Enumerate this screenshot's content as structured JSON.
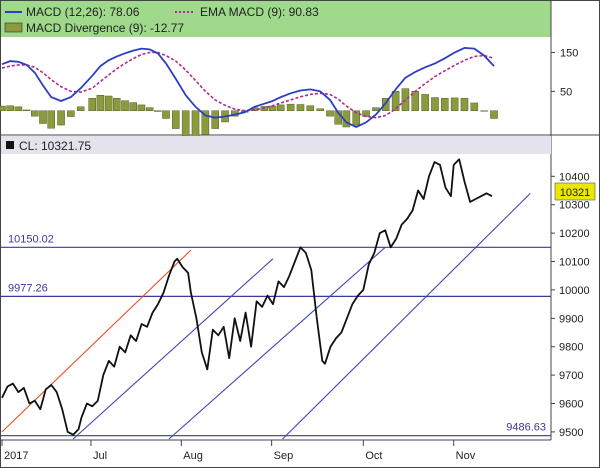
{
  "chart_data": [
    {
      "type": "line",
      "panel": "indicator",
      "legend": {
        "macd_label": "MACD (12,26): 78.06",
        "ema_label": "EMA MACD (9): 90.83",
        "div_label": "MACD Divergence (9): -12.77"
      },
      "ylim": [
        -60,
        190
      ],
      "yticks": [
        150,
        50
      ],
      "colors": {
        "macd": "#2c3fc0",
        "ema": "#b0278f",
        "divergence": "#8a9a3c",
        "header_bg": "#9fd98b"
      },
      "x": [
        0,
        5,
        10,
        15,
        20,
        25,
        30,
        36,
        42,
        48,
        55,
        60,
        65,
        70,
        75,
        80,
        85,
        90,
        95,
        100,
        106,
        112,
        118,
        124,
        130,
        136,
        142,
        148,
        154,
        160,
        165,
        170,
        176,
        182,
        188,
        194,
        200,
        205,
        210,
        216,
        222,
        228,
        234,
        240,
        246,
        252,
        258,
        264,
        270,
        276,
        282,
        288,
        294,
        300
      ],
      "series": [
        {
          "name": "MACD (12,26)",
          "values": [
            120,
            128,
            126,
            118,
            98,
            65,
            35,
            25,
            35,
            58,
            90,
            115,
            130,
            140,
            148,
            155,
            160,
            158,
            148,
            122,
            82,
            40,
            10,
            -12,
            -18,
            -15,
            -10,
            -4,
            10,
            18,
            25,
            35,
            45,
            52,
            55,
            50,
            28,
            -5,
            -30,
            -42,
            -30,
            -10,
            20,
            55,
            85,
            100,
            112,
            122,
            135,
            150,
            162,
            160,
            142,
            115
          ]
        },
        {
          "name": "EMA MACD (9)",
          "values": [
            110,
            115,
            118,
            118,
            112,
            98,
            80,
            62,
            50,
            48,
            58,
            75,
            92,
            108,
            122,
            134,
            145,
            150,
            150,
            142,
            128,
            105,
            78,
            50,
            28,
            14,
            4,
            0,
            2,
            7,
            13,
            20,
            28,
            36,
            42,
            45,
            42,
            30,
            12,
            -5,
            -15,
            -18,
            -12,
            5,
            28,
            50,
            70,
            88,
            103,
            117,
            130,
            140,
            142,
            135
          ]
        },
        {
          "name": "MACD Divergence (9)",
          "values": [
            12,
            13,
            10,
            2,
            -14,
            -33,
            -45,
            -37,
            -15,
            10,
            32,
            40,
            38,
            32,
            26,
            21,
            15,
            8,
            -2,
            -20,
            -46,
            -65,
            -68,
            -62,
            -46,
            -29,
            -14,
            -4,
            8,
            11,
            12,
            15,
            17,
            16,
            13,
            5,
            -14,
            -35,
            -42,
            -37,
            -15,
            8,
            32,
            50,
            57,
            50,
            42,
            34,
            32,
            33,
            32,
            20,
            0,
            -20
          ]
        }
      ]
    },
    {
      "type": "line",
      "panel": "price",
      "cl_label": "CL: 10321.75",
      "last_value_badge": "10321",
      "ylim": [
        9475,
        10475
      ],
      "yticks": [
        10400,
        10300,
        10200,
        10100,
        10000,
        9900,
        9800,
        9700,
        9600,
        9500
      ],
      "xticks": [
        {
          "label": "2017",
          "x": 0
        },
        {
          "label": "Jul",
          "x": 65
        },
        {
          "label": "Aug",
          "x": 131
        },
        {
          "label": "Sep",
          "x": 197
        },
        {
          "label": "Oct",
          "x": 264
        },
        {
          "label": "Nov",
          "x": 330
        }
      ],
      "horizontal_levels": [
        {
          "label": "10150.02",
          "value": 10150.02
        },
        {
          "label": "9977.26",
          "value": 9977.26
        },
        {
          "label": "9486.63",
          "value": 9486.63
        }
      ],
      "colors": {
        "price": "#111111",
        "levels": "#3a3a9a",
        "channel": "#4444bb",
        "red_channel": "#e8501e",
        "badge": "#e8e800"
      },
      "price": {
        "x": [
          0,
          4,
          8,
          12,
          16,
          20,
          24,
          28,
          32,
          36,
          40,
          44,
          48,
          52,
          56,
          58,
          62,
          66,
          70,
          74,
          78,
          82,
          86,
          90,
          94,
          98,
          102,
          106,
          110,
          114,
          118,
          122,
          126,
          128,
          132,
          136,
          138,
          142,
          146,
          150,
          154,
          158,
          162,
          166,
          170,
          174,
          178,
          182,
          186,
          190,
          194,
          198,
          202,
          206,
          210,
          214,
          218,
          222,
          226,
          230,
          234,
          236,
          240,
          244,
          248,
          252,
          256,
          260,
          264,
          268,
          272,
          276,
          280,
          284,
          288,
          292,
          296,
          300,
          304,
          308,
          312,
          316,
          320,
          324,
          328,
          330,
          334,
          338,
          342,
          346,
          350,
          354,
          358
        ],
        "y": [
          9620,
          9660,
          9670,
          9640,
          9655,
          9600,
          9610,
          9580,
          9650,
          9665,
          9640,
          9580,
          9500,
          9490,
          9510,
          9550,
          9600,
          9590,
          9610,
          9700,
          9750,
          9730,
          9800,
          9780,
          9840,
          9820,
          9880,
          9870,
          9920,
          9950,
          9990,
          10050,
          10100,
          10110,
          10080,
          10060,
          9990,
          9900,
          9780,
          9720,
          9860,
          9840,
          9870,
          9760,
          9900,
          9820,
          9920,
          9800,
          9960,
          9940,
          9980,
          9950,
          10030,
          10010,
          10050,
          10100,
          10150,
          10130,
          10070,
          9900,
          9750,
          9740,
          9800,
          9830,
          9850,
          9900,
          9950,
          9980,
          10000,
          10090,
          10130,
          10200,
          10210,
          10150,
          10180,
          10230,
          10250,
          10280,
          10350,
          10320,
          10400,
          10450,
          10440,
          10360,
          10330,
          10440,
          10460,
          10380,
          10310,
          10320,
          10330,
          10340,
          10330
        ]
      }
    }
  ]
}
